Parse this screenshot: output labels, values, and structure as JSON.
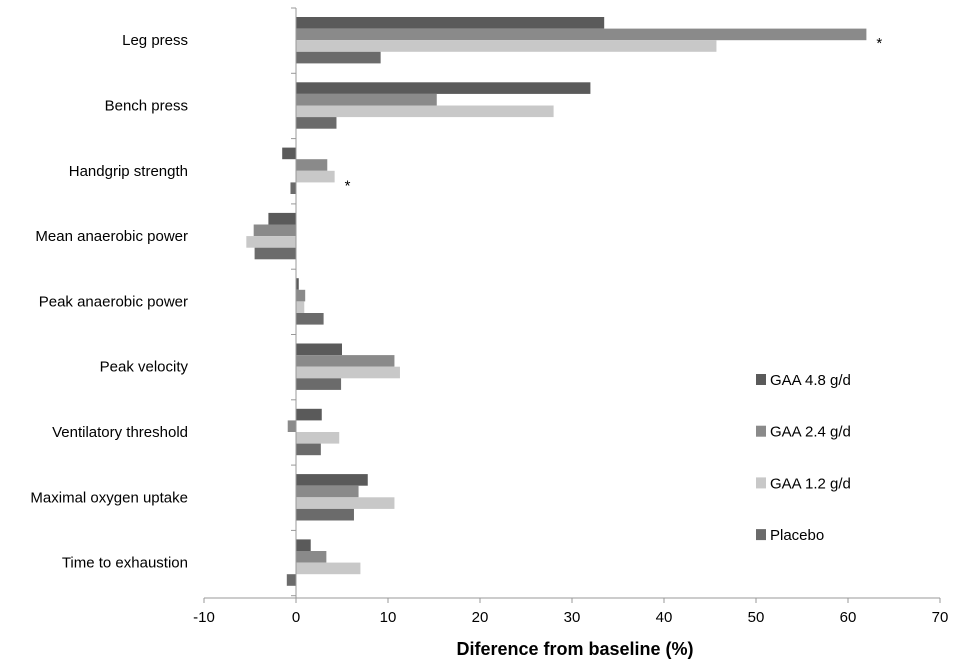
{
  "chart_data": {
    "type": "bar",
    "orientation": "horizontal",
    "title": "",
    "xlabel": "Diference from baseline (%)",
    "ylabel": "",
    "xlim": [
      -10,
      70
    ],
    "xticks": [
      -10,
      0,
      10,
      20,
      30,
      40,
      50,
      60,
      70
    ],
    "categories": [
      "Leg press",
      "Bench press",
      "Handgrip strength",
      "Mean anaerobic power",
      "Peak anaerobic power",
      "Peak velocity",
      "Ventilatory threshold",
      "Maximal oxygen uptake",
      "Time to exhaustion"
    ],
    "series": [
      {
        "name": "GAA 4.8 g/d",
        "color": "#5a5a5a",
        "values": [
          33.5,
          32.0,
          -1.5,
          -3.0,
          0.3,
          5.0,
          2.8,
          7.8,
          1.6
        ]
      },
      {
        "name": "GAA 2.4 g/d",
        "color": "#8a8a8a",
        "values": [
          62.0,
          15.3,
          3.4,
          -4.6,
          1.0,
          10.7,
          -0.9,
          6.8,
          3.3
        ]
      },
      {
        "name": "GAA 1.2 g/d",
        "color": "#c8c8c8",
        "values": [
          45.7,
          28.0,
          4.2,
          -5.4,
          0.9,
          11.3,
          4.7,
          10.7,
          7.0
        ]
      },
      {
        "name": "Placebo",
        "color": "#6b6b6b",
        "values": [
          9.2,
          4.4,
          -0.6,
          -4.5,
          3.0,
          4.9,
          2.7,
          6.3,
          -1.0
        ]
      }
    ],
    "annotations": [
      {
        "text": "*",
        "category": "Leg press"
      },
      {
        "text": "*",
        "category": "Handgrip strength"
      }
    ],
    "legend_position": "right"
  }
}
